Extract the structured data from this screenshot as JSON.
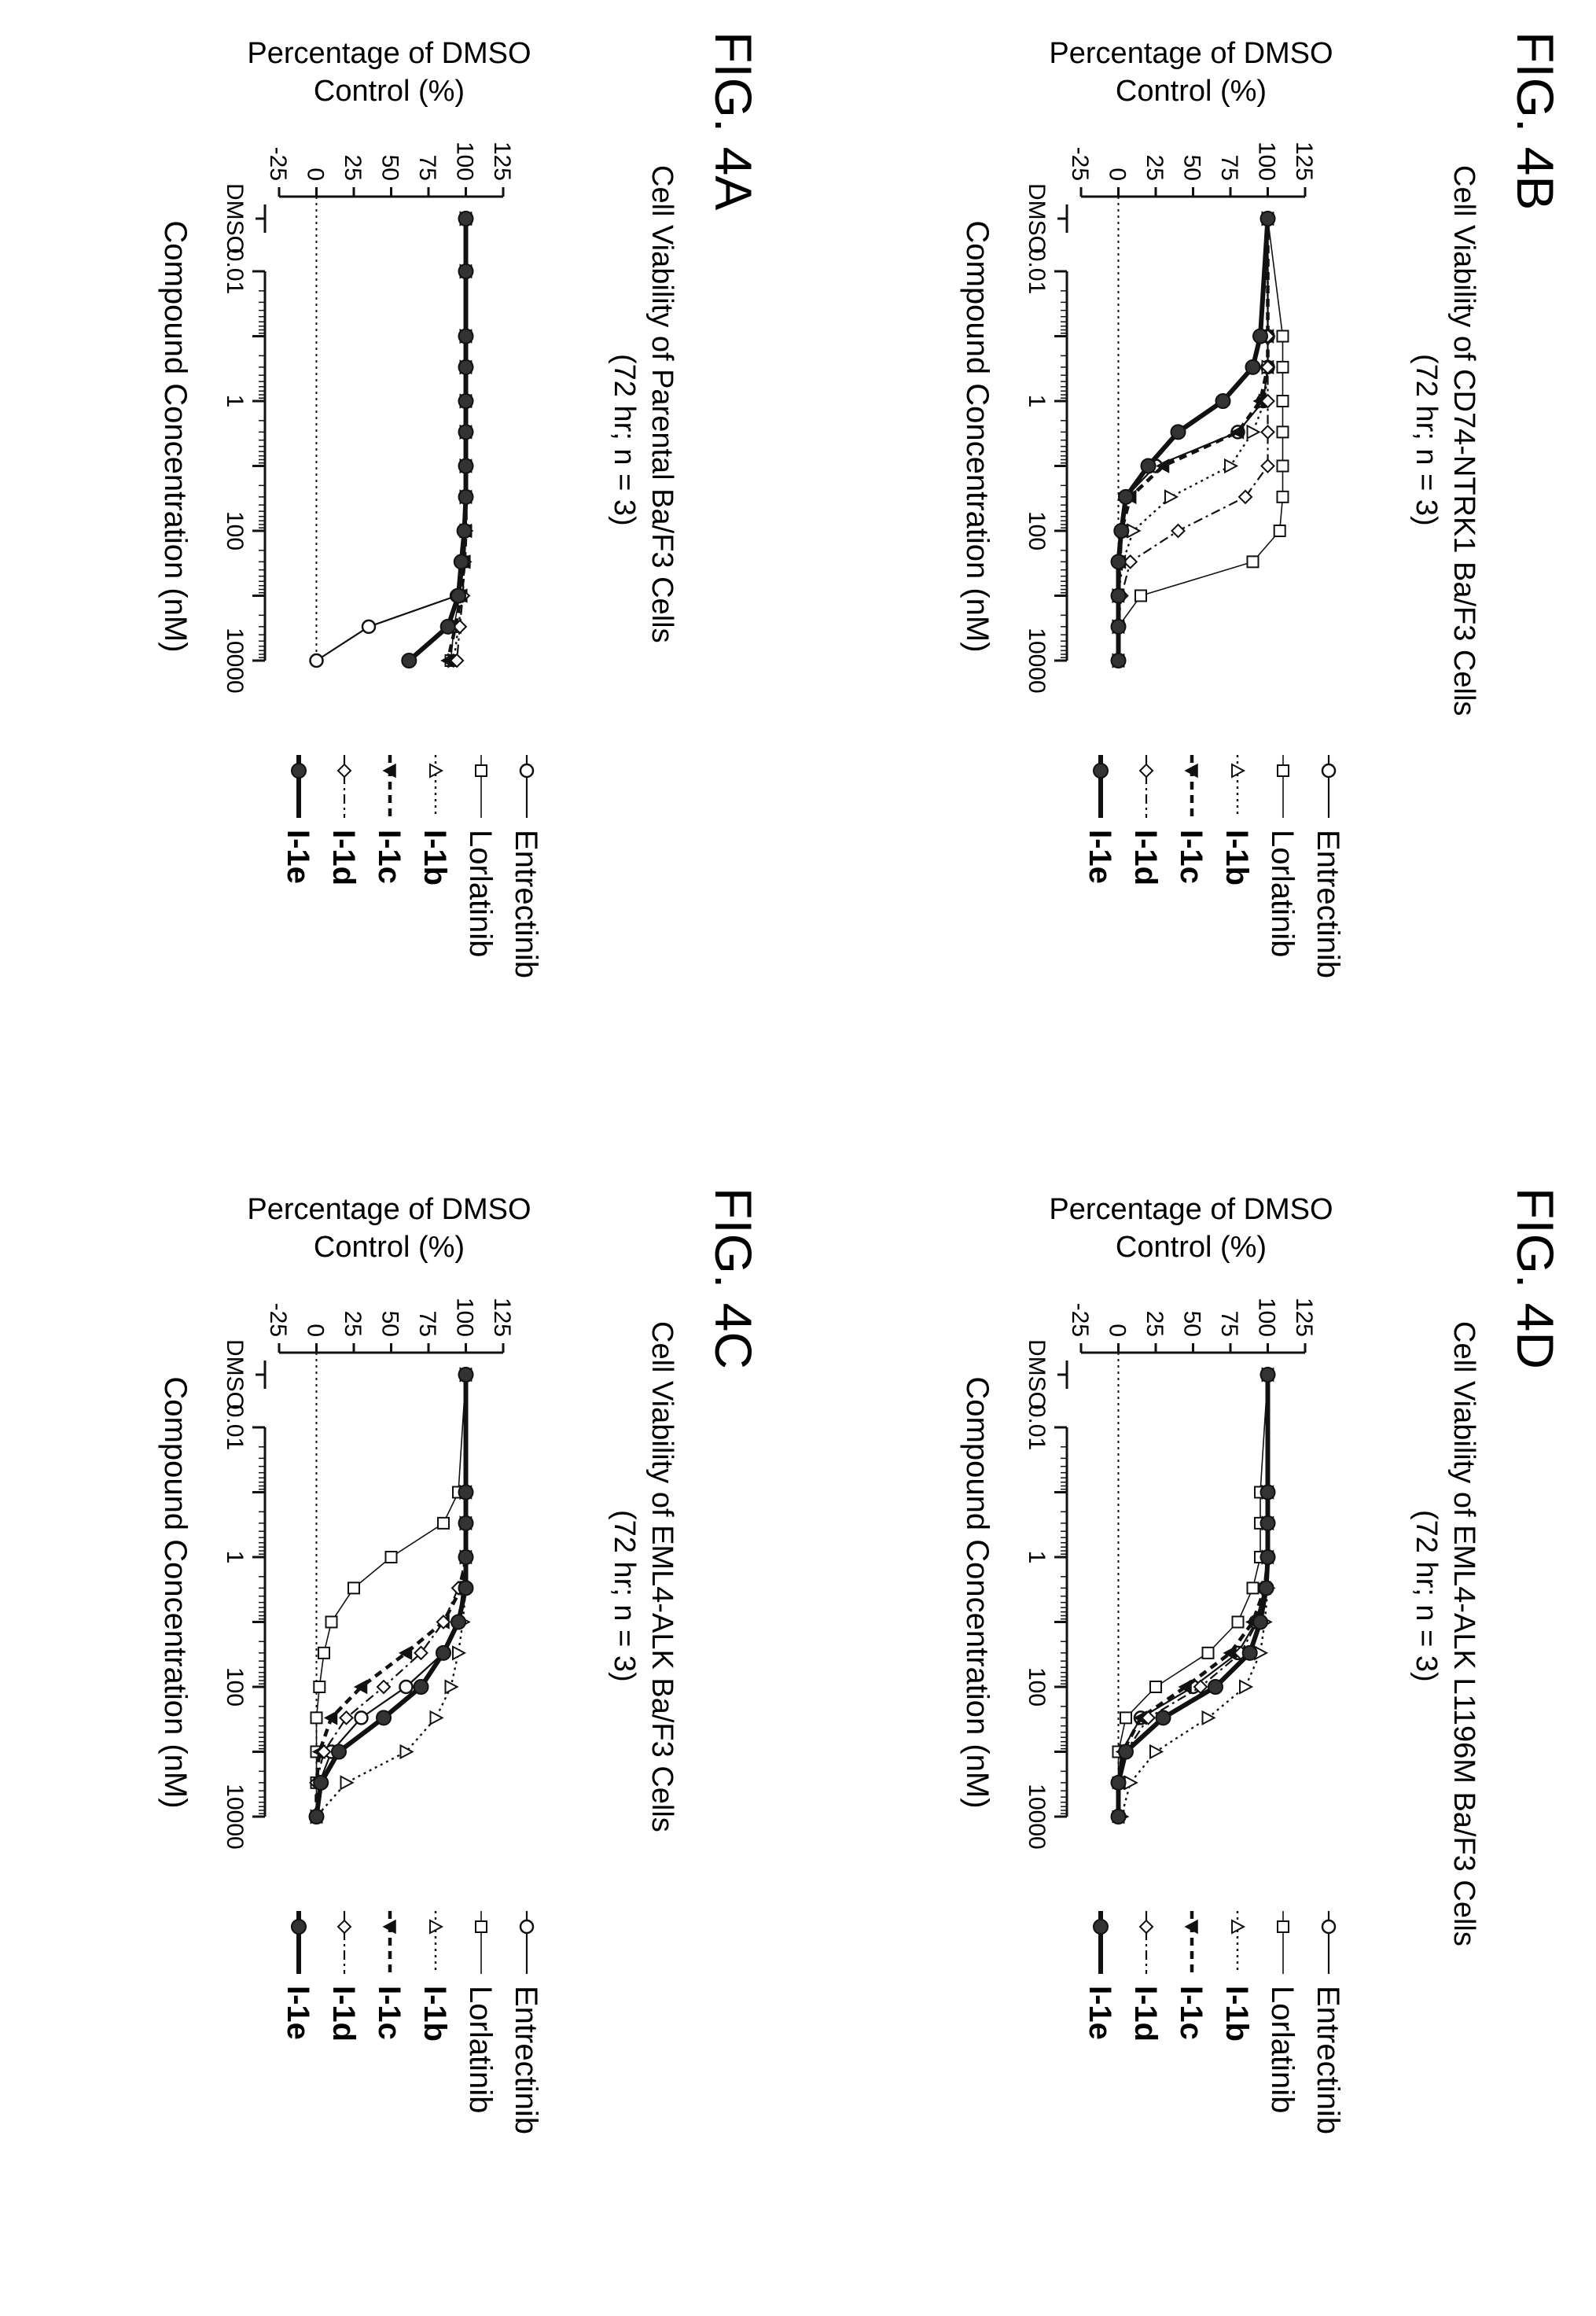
{
  "page": {
    "orientation": "rotated-90-clockwise"
  },
  "figures": [
    {
      "label": "FIG. 4A",
      "title": "Cell Viability of Parental Ba/F3 Cells",
      "subtitle": "(72 hr; n = 3)"
    },
    {
      "label": "FIG. 4B",
      "title": "Cell Viability of CD74-NTRK1 Ba/F3 Cells",
      "subtitle": "(72 hr; n = 3)"
    },
    {
      "label": "FIG. 4C",
      "title": "Cell Viability of EML4-ALK Ba/F3 Cells",
      "subtitle": "(72 hr; n = 3)"
    },
    {
      "label": "FIG. 4D",
      "title": "Cell Viability of EML4-ALK L1196M Ba/F3 Cells",
      "subtitle": "(72 hr; n = 3)"
    }
  ],
  "legend": [
    {
      "name": "Entrectinib",
      "marker": "circle-open",
      "line": "solid-thin",
      "bold": false
    },
    {
      "name": "Lorlatinib",
      "marker": "square-open",
      "line": "solid-thin",
      "bold": false
    },
    {
      "name": "I-1b",
      "marker": "triangle-open",
      "line": "dotted",
      "bold": true
    },
    {
      "name": "I-1c",
      "marker": "triangle-down-filled",
      "line": "dashed",
      "bold": true
    },
    {
      "name": "I-1d",
      "marker": "diamond-open",
      "line": "dash-dot",
      "bold": true
    },
    {
      "name": "I-1e",
      "marker": "circle-filled",
      "line": "solid-thick",
      "bold": true
    }
  ],
  "chart_data": [
    {
      "type": "line",
      "title": "Cell Viability of Parental Ba/F3 Cells",
      "subtitle": "(72 hr; n = 3)",
      "xlabel": "Compound Concentration (nM)",
      "ylabel": "Percentage of DMSO Control (%)",
      "x_scale": "log",
      "x_ticks": [
        "DMSO",
        "0.01",
        "1",
        "100",
        "10000"
      ],
      "y_ticks": [
        "-25",
        "0",
        "25",
        "50",
        "75",
        "100",
        "125"
      ],
      "ylim": [
        -25,
        125
      ],
      "x": [
        0.01,
        0.1,
        0.3,
        1,
        3,
        10,
        30,
        100,
        300,
        1000,
        3000,
        10000
      ],
      "series": [
        {
          "name": "Entrectinib",
          "dmso": 100,
          "values": [
            100,
            100,
            100,
            100,
            100,
            100,
            100,
            99,
            97,
            94,
            35,
            0
          ]
        },
        {
          "name": "Lorlatinib",
          "dmso": 100,
          "values": [
            100,
            100,
            100,
            100,
            100,
            100,
            100,
            100,
            99,
            96,
            92,
            90
          ]
        },
        {
          "name": "I-1b",
          "dmso": 100,
          "values": [
            100,
            100,
            100,
            100,
            100,
            100,
            100,
            100,
            99,
            98,
            95,
            92
          ]
        },
        {
          "name": "I-1c",
          "dmso": 100,
          "values": [
            100,
            100,
            100,
            100,
            100,
            100,
            100,
            100,
            99,
            97,
            93,
            88
          ]
        },
        {
          "name": "I-1d",
          "dmso": 100,
          "values": [
            100,
            100,
            100,
            100,
            100,
            100,
            100,
            100,
            99,
            98,
            96,
            94
          ]
        },
        {
          "name": "I-1e",
          "dmso": 100,
          "values": [
            100,
            100,
            100,
            100,
            100,
            100,
            100,
            99,
            97,
            95,
            88,
            62
          ]
        }
      ]
    },
    {
      "type": "line",
      "title": "Cell Viability of CD74-NTRK1 Ba/F3 Cells",
      "subtitle": "(72 hr; n = 3)",
      "xlabel": "Compound Concentration (nM)",
      "ylabel": "Percentage of DMSO Control (%)",
      "x_scale": "log",
      "x_ticks": [
        "DMSO",
        "0.01",
        "1",
        "100",
        "10000"
      ],
      "y_ticks": [
        "-25",
        "0",
        "25",
        "50",
        "75",
        "100",
        "125"
      ],
      "ylim": [
        -25,
        125
      ],
      "x": [
        0.1,
        0.3,
        1,
        3,
        10,
        30,
        100,
        300,
        1000,
        3000,
        10000
      ],
      "series": [
        {
          "name": "Entrectinib",
          "dmso": 100,
          "values": [
            100,
            100,
            97,
            80,
            25,
            5,
            2,
            1,
            0,
            0,
            0
          ]
        },
        {
          "name": "Lorlatinib",
          "dmso": 100,
          "values": [
            110,
            110,
            110,
            110,
            110,
            110,
            108,
            90,
            15,
            0,
            0
          ]
        },
        {
          "name": "I-1b",
          "dmso": 100,
          "values": [
            100,
            100,
            98,
            90,
            75,
            35,
            10,
            3,
            0,
            0,
            0
          ]
        },
        {
          "name": "I-1c",
          "dmso": 100,
          "values": [
            100,
            100,
            95,
            80,
            30,
            8,
            2,
            1,
            0,
            0,
            0
          ]
        },
        {
          "name": "I-1d",
          "dmso": 100,
          "values": [
            100,
            100,
            100,
            100,
            100,
            85,
            40,
            8,
            2,
            0,
            0
          ]
        },
        {
          "name": "I-1e",
          "dmso": 100,
          "values": [
            95,
            90,
            70,
            40,
            20,
            5,
            2,
            0,
            0,
            0,
            0
          ]
        }
      ]
    },
    {
      "type": "line",
      "title": "Cell Viability of EML4-ALK Ba/F3 Cells",
      "subtitle": "(72 hr; n = 3)",
      "xlabel": "Compound Concentration (nM)",
      "ylabel": "Percentage of DMSO Control (%)",
      "x_scale": "log",
      "x_ticks": [
        "DMSO",
        "0.01",
        "1",
        "100",
        "10000"
      ],
      "y_ticks": [
        "-25",
        "0",
        "25",
        "50",
        "75",
        "100",
        "125"
      ],
      "ylim": [
        -25,
        125
      ],
      "x": [
        0.1,
        0.3,
        1,
        3,
        10,
        30,
        100,
        300,
        1000,
        3000,
        10000
      ],
      "series": [
        {
          "name": "Entrectinib",
          "dmso": 100,
          "values": [
            100,
            100,
            100,
            98,
            95,
            85,
            60,
            30,
            10,
            2,
            0
          ]
        },
        {
          "name": "Lorlatinib",
          "dmso": 100,
          "values": [
            95,
            85,
            50,
            25,
            10,
            5,
            2,
            0,
            0,
            0,
            0
          ]
        },
        {
          "name": "I-1b",
          "dmso": 100,
          "values": [
            100,
            100,
            100,
            100,
            98,
            95,
            90,
            80,
            60,
            20,
            0
          ]
        },
        {
          "name": "I-1c",
          "dmso": 100,
          "values": [
            100,
            100,
            100,
            97,
            85,
            60,
            30,
            10,
            2,
            0,
            0
          ]
        },
        {
          "name": "I-1d",
          "dmso": 100,
          "values": [
            100,
            100,
            100,
            95,
            85,
            70,
            45,
            20,
            5,
            0,
            0
          ]
        },
        {
          "name": "I-1e",
          "dmso": 100,
          "values": [
            100,
            100,
            100,
            100,
            95,
            85,
            70,
            45,
            15,
            3,
            0
          ]
        }
      ]
    },
    {
      "type": "line",
      "title": "Cell Viability of EML4-ALK L1196M Ba/F3 Cells",
      "subtitle": "(72 hr; n = 3)",
      "xlabel": "Compound Concentration (nM)",
      "ylabel": "Percentage of DMSO Control (%)",
      "x_scale": "log",
      "x_ticks": [
        "DMSO",
        "0.01",
        "1",
        "100",
        "10000"
      ],
      "y_ticks": [
        "-25",
        "0",
        "25",
        "50",
        "75",
        "100",
        "125"
      ],
      "ylim": [
        -25,
        125
      ],
      "x": [
        0.1,
        0.3,
        1,
        3,
        10,
        30,
        100,
        300,
        1000,
        3000,
        10000
      ],
      "series": [
        {
          "name": "Entrectinib",
          "dmso": 100,
          "values": [
            100,
            100,
            100,
            98,
            92,
            80,
            50,
            15,
            2,
            0,
            0
          ]
        },
        {
          "name": "Lorlatinib",
          "dmso": 100,
          "values": [
            95,
            95,
            95,
            90,
            80,
            60,
            25,
            5,
            0,
            0,
            0
          ]
        },
        {
          "name": "I-1b",
          "dmso": 100,
          "values": [
            100,
            100,
            100,
            100,
            98,
            95,
            85,
            60,
            25,
            8,
            2
          ]
        },
        {
          "name": "I-1c",
          "dmso": 100,
          "values": [
            100,
            100,
            100,
            98,
            90,
            75,
            45,
            15,
            3,
            0,
            0
          ]
        },
        {
          "name": "I-1d",
          "dmso": 100,
          "values": [
            100,
            100,
            100,
            99,
            93,
            82,
            55,
            20,
            5,
            0,
            0
          ]
        },
        {
          "name": "I-1e",
          "dmso": 100,
          "values": [
            100,
            100,
            100,
            99,
            95,
            88,
            65,
            30,
            5,
            0,
            0
          ]
        }
      ]
    }
  ]
}
